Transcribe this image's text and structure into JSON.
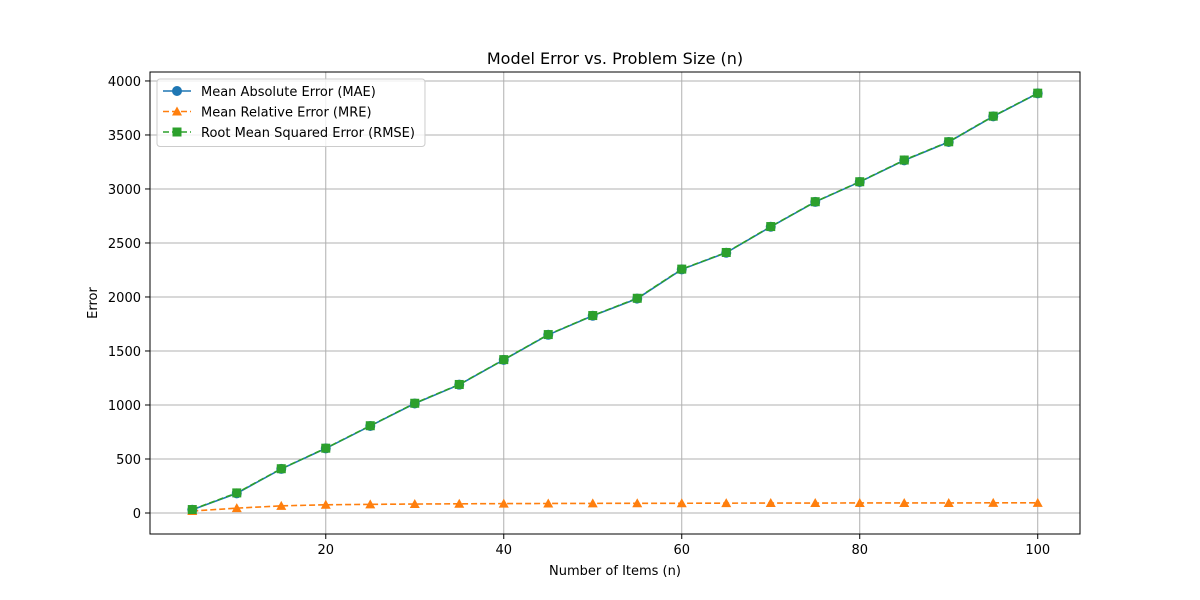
{
  "chart_data": {
    "type": "line",
    "title": "Model Error vs. Problem Size (n)",
    "xlabel": "Number of Items (n)",
    "ylabel": "Error",
    "xlim": [
      0.25,
      104.75
    ],
    "ylim": [
      -194.5,
      4083
    ],
    "xticks": [
      20,
      40,
      60,
      80,
      100
    ],
    "yticks": [
      0,
      500,
      1000,
      1500,
      2000,
      2500,
      3000,
      3500,
      4000
    ],
    "grid": true,
    "legend_position": "upper-left",
    "x": [
      5,
      10,
      15,
      20,
      25,
      30,
      35,
      40,
      45,
      50,
      55,
      60,
      65,
      70,
      75,
      80,
      85,
      90,
      95,
      100
    ],
    "series": [
      {
        "name": "Mean Absolute Error (MAE)",
        "color": "#1f77b4",
        "marker": "circle",
        "linestyle": "solid",
        "values": [
          30,
          182,
          408,
          598,
          806,
          1014,
          1188,
          1418,
          1650,
          1826,
          1985,
          2255,
          2410,
          2650,
          2880,
          3065,
          3265,
          3435,
          3672,
          3885
        ]
      },
      {
        "name": "Mean Relative Error (MRE)",
        "color": "#ff7f0e",
        "marker": "triangle",
        "linestyle": "dashed",
        "values": [
          18,
          45,
          66,
          76,
          80,
          83,
          85,
          87,
          88,
          89,
          90,
          90,
          91,
          92,
          92,
          93,
          93,
          93,
          94,
          94
        ]
      },
      {
        "name": "Root Mean Squared Error (RMSE)",
        "color": "#2ca02c",
        "marker": "square",
        "linestyle": "dashed",
        "values": [
          32,
          186,
          410,
          600,
          808,
          1016,
          1190,
          1420,
          1652,
          1828,
          1988,
          2258,
          2412,
          2652,
          2882,
          3067,
          3268,
          3437,
          3674,
          3887
        ]
      }
    ]
  }
}
